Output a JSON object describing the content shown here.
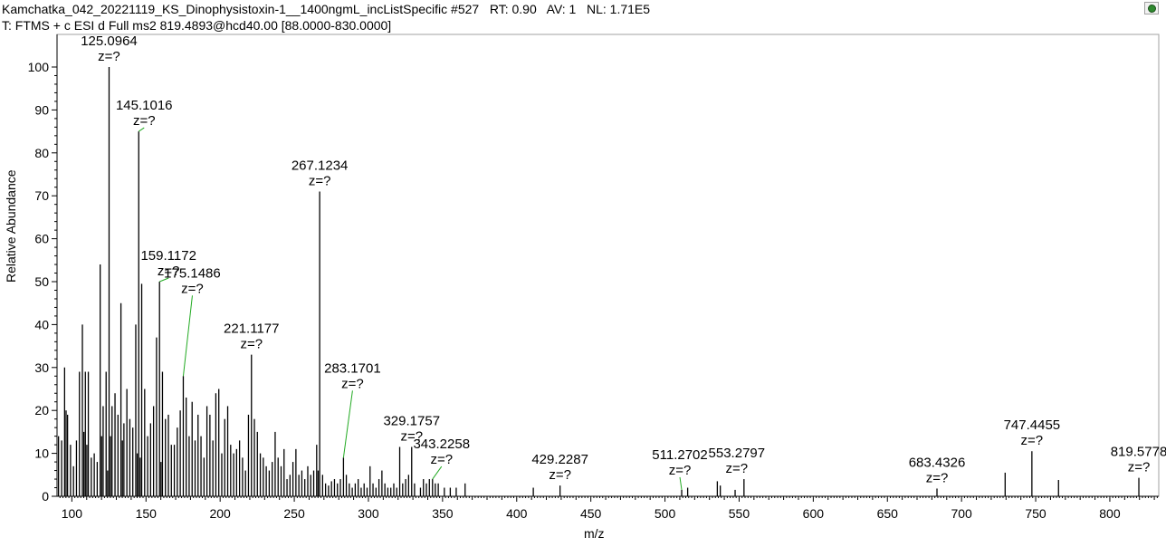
{
  "header": {
    "line1": "Kamchatka_042_20221119_KS_Dinophysistoxin-1__1400ngmL_incListSpecific #527   RT: 0.90   AV: 1   NL: 1.71E5",
    "line2": "T: FTMS + c ESI d Full ms2 819.4893@hcd40.00 [88.0000-830.0000]"
  },
  "toolbar": {
    "icon": "spectrum-settings-icon"
  },
  "chart_data": {
    "type": "bar",
    "xlabel": "m/z",
    "ylabel": "Relative Abundance",
    "xlim": [
      90,
      833
    ],
    "ylim": [
      0,
      100
    ],
    "xticks": [
      100,
      150,
      200,
      250,
      300,
      350,
      400,
      450,
      500,
      550,
      600,
      650,
      700,
      750,
      800
    ],
    "yticks": [
      0,
      10,
      20,
      30,
      40,
      50,
      60,
      70,
      80,
      90,
      100
    ],
    "grid": false,
    "peaks": [
      [
        91.0,
        14
      ],
      [
        93.1,
        13
      ],
      [
        95.1,
        30
      ],
      [
        96.1,
        20
      ],
      [
        97.1,
        19
      ],
      [
        99.1,
        12
      ],
      [
        101.1,
        7
      ],
      [
        103.1,
        13
      ],
      [
        105.1,
        29
      ],
      [
        107.1,
        40
      ],
      [
        108.1,
        15
      ],
      [
        109.1,
        29
      ],
      [
        110.1,
        12
      ],
      [
        111.1,
        29
      ],
      [
        113.1,
        9
      ],
      [
        115.1,
        10
      ],
      [
        117.1,
        8
      ],
      [
        119.1,
        54
      ],
      [
        120.1,
        14
      ],
      [
        121.1,
        21
      ],
      [
        123.1,
        29
      ],
      [
        124.1,
        6
      ],
      [
        125.0964,
        100
      ],
      [
        126.1,
        14
      ],
      [
        127.1,
        21
      ],
      [
        129.1,
        24
      ],
      [
        131.1,
        19
      ],
      [
        133.1,
        45
      ],
      [
        134.1,
        13
      ],
      [
        135.1,
        17
      ],
      [
        137.1,
        25
      ],
      [
        139.1,
        18
      ],
      [
        141.1,
        16
      ],
      [
        143.1,
        40
      ],
      [
        144.1,
        10
      ],
      [
        145.1016,
        85
      ],
      [
        146.1,
        9
      ],
      [
        147.1,
        49.5
      ],
      [
        149.1,
        25
      ],
      [
        151.1,
        14
      ],
      [
        153.1,
        17
      ],
      [
        155.1,
        21
      ],
      [
        157.1,
        37
      ],
      [
        159.1172,
        50
      ],
      [
        160.1,
        8
      ],
      [
        161.1,
        29
      ],
      [
        163.1,
        18
      ],
      [
        165.1,
        19
      ],
      [
        167.1,
        12
      ],
      [
        169.1,
        12
      ],
      [
        171.1,
        16
      ],
      [
        173.1,
        20
      ],
      [
        175.1486,
        28
      ],
      [
        177.1,
        23
      ],
      [
        179.1,
        14
      ],
      [
        181.1,
        22
      ],
      [
        183.1,
        13
      ],
      [
        185.1,
        19
      ],
      [
        187.1,
        14
      ],
      [
        189.1,
        9
      ],
      [
        191.1,
        21
      ],
      [
        193.1,
        19
      ],
      [
        195.1,
        13
      ],
      [
        197.1,
        24
      ],
      [
        199.1,
        25
      ],
      [
        201.1,
        10
      ],
      [
        203.1,
        18
      ],
      [
        205.1,
        21
      ],
      [
        207.1,
        12
      ],
      [
        209.1,
        10
      ],
      [
        211.1,
        11
      ],
      [
        213.1,
        13
      ],
      [
        215.1,
        9
      ],
      [
        217.1,
        6
      ],
      [
        219.1,
        19
      ],
      [
        221.1177,
        33
      ],
      [
        223.1,
        18
      ],
      [
        225.1,
        15
      ],
      [
        227.1,
        10
      ],
      [
        229.1,
        9
      ],
      [
        231.1,
        7
      ],
      [
        233.1,
        6
      ],
      [
        235.1,
        8
      ],
      [
        237.1,
        15
      ],
      [
        239.1,
        9
      ],
      [
        241.1,
        7
      ],
      [
        243.1,
        11
      ],
      [
        245.1,
        4
      ],
      [
        247.1,
        5
      ],
      [
        249.1,
        8
      ],
      [
        251.1,
        11
      ],
      [
        253.1,
        5
      ],
      [
        255.1,
        6
      ],
      [
        257.1,
        4
      ],
      [
        259.1,
        7
      ],
      [
        261.1,
        5
      ],
      [
        263.1,
        6
      ],
      [
        265.1,
        12
      ],
      [
        266.1,
        6
      ],
      [
        267.1234,
        71
      ],
      [
        269.1,
        5
      ],
      [
        271.1,
        3
      ],
      [
        273.1,
        2.5
      ],
      [
        275.1,
        3.5
      ],
      [
        277.1,
        4
      ],
      [
        279.1,
        3
      ],
      [
        281.1,
        4
      ],
      [
        283.1701,
        9
      ],
      [
        285.1,
        5
      ],
      [
        287.1,
        3
      ],
      [
        289.1,
        2
      ],
      [
        291.1,
        3
      ],
      [
        293.1,
        4
      ],
      [
        295.1,
        2
      ],
      [
        297.1,
        3
      ],
      [
        299.1,
        2
      ],
      [
        301.1,
        7
      ],
      [
        303.1,
        3
      ],
      [
        305.1,
        2
      ],
      [
        307.1,
        4
      ],
      [
        309.1,
        6
      ],
      [
        311.1,
        3
      ],
      [
        313.1,
        2
      ],
      [
        315.1,
        2
      ],
      [
        317.1,
        3
      ],
      [
        319.1,
        2
      ],
      [
        321.1,
        11.5
      ],
      [
        323.1,
        3
      ],
      [
        325.1,
        4
      ],
      [
        327.1,
        5
      ],
      [
        329.1757,
        11.5
      ],
      [
        331.1,
        3
      ],
      [
        335.1,
        2
      ],
      [
        337.1,
        4
      ],
      [
        339.1,
        3
      ],
      [
        341.1,
        4
      ],
      [
        343.2258,
        4
      ],
      [
        345.1,
        3
      ],
      [
        347.1,
        3
      ],
      [
        351.2,
        2
      ],
      [
        355.2,
        2
      ],
      [
        359.2,
        2
      ],
      [
        365.2,
        3
      ],
      [
        411.2,
        2
      ],
      [
        429.2287,
        2.5
      ],
      [
        511.2702,
        1.5
      ],
      [
        515.3,
        2
      ],
      [
        535.3,
        3.5
      ],
      [
        537.3,
        2.5
      ],
      [
        547.3,
        1.5
      ],
      [
        553.2797,
        4
      ],
      [
        683.4326,
        1.8
      ],
      [
        729.4,
        5.5
      ],
      [
        747.4455,
        10.5
      ],
      [
        765.4,
        3.8
      ],
      [
        819.5778,
        4.3
      ]
    ],
    "annotations": [
      {
        "mz": 125.0964,
        "label": "125.0964",
        "charge": "z=?"
      },
      {
        "mz": 145.1016,
        "label": "145.1016",
        "charge": "z=?"
      },
      {
        "mz": 159.1172,
        "label": "159.1172",
        "charge": "z=?"
      },
      {
        "mz": 175.1486,
        "label": "175.1486",
        "charge": "z=?"
      },
      {
        "mz": 221.1177,
        "label": "221.1177",
        "charge": "z=?"
      },
      {
        "mz": 267.1234,
        "label": "267.1234",
        "charge": "z=?"
      },
      {
        "mz": 283.1701,
        "label": "283.1701",
        "charge": "z=?"
      },
      {
        "mz": 329.1757,
        "label": "329.1757",
        "charge": "z=?"
      },
      {
        "mz": 343.2258,
        "label": "343.2258",
        "charge": "z=?"
      },
      {
        "mz": 429.2287,
        "label": "429.2287",
        "charge": "z=?"
      },
      {
        "mz": 511.2702,
        "label": "511.2702",
        "charge": "z=?"
      },
      {
        "mz": 553.2797,
        "label": "553.2797",
        "charge": "z=?"
      },
      {
        "mz": 683.4326,
        "label": "683.4326",
        "charge": "z=?"
      },
      {
        "mz": 747.4455,
        "label": "747.4455",
        "charge": "z=?"
      },
      {
        "mz": 819.5778,
        "label": "819.5778",
        "charge": "z=?"
      }
    ],
    "colors": {
      "peak": "#000000",
      "leader": "#22aa22",
      "frame": "#a0a0a0"
    }
  }
}
